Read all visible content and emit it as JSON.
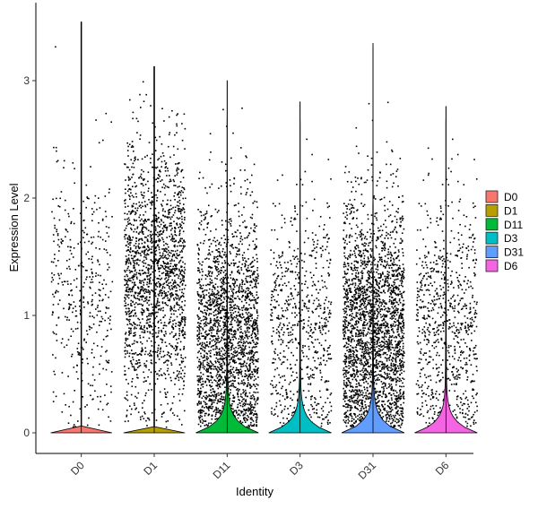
{
  "chart_data": {
    "type": "violin",
    "title": "",
    "xlabel": "Identity",
    "ylabel": "Expression Level",
    "ylim": [
      -0.18,
      3.57
    ],
    "yticks": [
      0,
      1,
      2,
      3
    ],
    "grid": false,
    "legend_position": "right",
    "categories": [
      "D0",
      "D1",
      "D11",
      "D3",
      "D31",
      "D6"
    ],
    "series": [
      {
        "name": "D0",
        "color": "#F8766D",
        "max": 3.5,
        "violin_peak_width": 0.9,
        "jitter_points": 420,
        "jitter_median": 1.2
      },
      {
        "name": "D1",
        "color": "#B79F00",
        "max": 3.12,
        "violin_peak_width": 0.9,
        "jitter_points": 1800,
        "jitter_median": 1.35
      },
      {
        "name": "D11",
        "color": "#00BA38",
        "max": 3.0,
        "violin_peak_width": 0.9,
        "jitter_points": 2200,
        "jitter_median": 0.8
      },
      {
        "name": "D3",
        "color": "#00BFC4",
        "max": 2.82,
        "violin_peak_width": 0.9,
        "jitter_points": 700,
        "jitter_median": 0.9
      },
      {
        "name": "D31",
        "color": "#619CFF",
        "max": 3.32,
        "violin_peak_width": 0.9,
        "jitter_points": 2600,
        "jitter_median": 0.85
      },
      {
        "name": "D6",
        "color": "#F564E3",
        "max": 2.78,
        "violin_peak_width": 0.9,
        "jitter_points": 800,
        "jitter_median": 0.9
      }
    ]
  }
}
